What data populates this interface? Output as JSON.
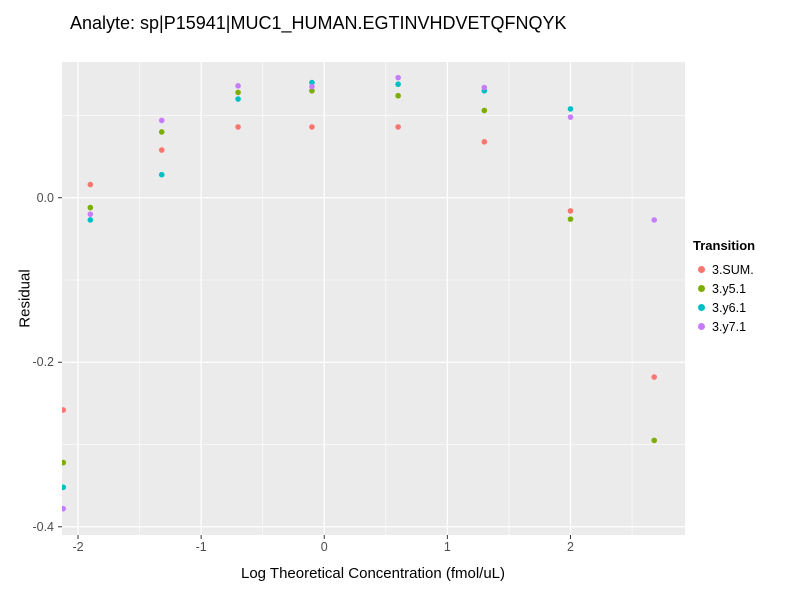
{
  "title": "Analyte: sp|P15941|MUC1_HUMAN.EGTINVHDVETQFNQYK",
  "chart_data": {
    "type": "scatter",
    "title": "Analyte: sp|P15941|MUC1_HUMAN.EGTINVHDVETQFNQYK",
    "xlabel": "Log Theoretical Concentration (fmol/uL)",
    "ylabel": "Residual",
    "xlim": [
      -2.13,
      2.93
    ],
    "ylim": [
      -0.41,
      0.165
    ],
    "x_ticks": [
      -2,
      -1,
      0,
      1,
      2
    ],
    "x_tick_labels": [
      "-2",
      "-1",
      "0",
      "1",
      "2"
    ],
    "y_ticks": [
      0.0,
      -0.2,
      -0.4
    ],
    "y_tick_labels": [
      "0.0",
      "-0.2",
      "-0.4"
    ],
    "x_minor_ticks": [
      -1.5,
      -0.5,
      0.5,
      1.5,
      2.5
    ],
    "y_minor_ticks": [
      0.1,
      -0.1,
      -0.3
    ],
    "grid": true,
    "panel_background": "#EBEBEB",
    "grid_color": "#FFFFFF",
    "legend_title": "Transition",
    "legend_position": "right",
    "series": [
      {
        "name": "3.SUM.",
        "color": "#F8766D",
        "points": [
          [
            -2.12,
            -0.258
          ],
          [
            -1.9,
            0.016
          ],
          [
            -1.32,
            0.058
          ],
          [
            -0.7,
            0.086
          ],
          [
            -0.1,
            0.086
          ],
          [
            0.6,
            0.086
          ],
          [
            1.3,
            0.068
          ],
          [
            2.0,
            -0.016
          ],
          [
            2.68,
            -0.218
          ]
        ]
      },
      {
        "name": "3.y5.1",
        "color": "#7CAE00",
        "points": [
          [
            -2.12,
            -0.322
          ],
          [
            -1.9,
            -0.012
          ],
          [
            -1.32,
            0.08
          ],
          [
            -0.7,
            0.128
          ],
          [
            -0.1,
            0.13
          ],
          [
            0.6,
            0.124
          ],
          [
            1.3,
            0.106
          ],
          [
            2.0,
            -0.026
          ],
          [
            2.68,
            -0.295
          ]
        ]
      },
      {
        "name": "3.y6.1",
        "color": "#00BFC4",
        "points": [
          [
            -2.12,
            -0.352
          ],
          [
            -1.9,
            -0.027
          ],
          [
            -1.32,
            0.028
          ],
          [
            -0.7,
            0.12
          ],
          [
            -0.1,
            0.14
          ],
          [
            0.6,
            0.138
          ],
          [
            1.3,
            0.13
          ],
          [
            2.0,
            0.108
          ]
        ]
      },
      {
        "name": "3.y7.1",
        "color": "#C77CFF",
        "points": [
          [
            -2.12,
            -0.378
          ],
          [
            -1.9,
            -0.02
          ],
          [
            -1.32,
            0.094
          ],
          [
            -0.7,
            0.136
          ],
          [
            -0.1,
            0.135
          ],
          [
            0.6,
            0.146
          ],
          [
            1.3,
            0.134
          ],
          [
            2.0,
            0.098
          ],
          [
            2.68,
            -0.027
          ]
        ]
      }
    ]
  }
}
